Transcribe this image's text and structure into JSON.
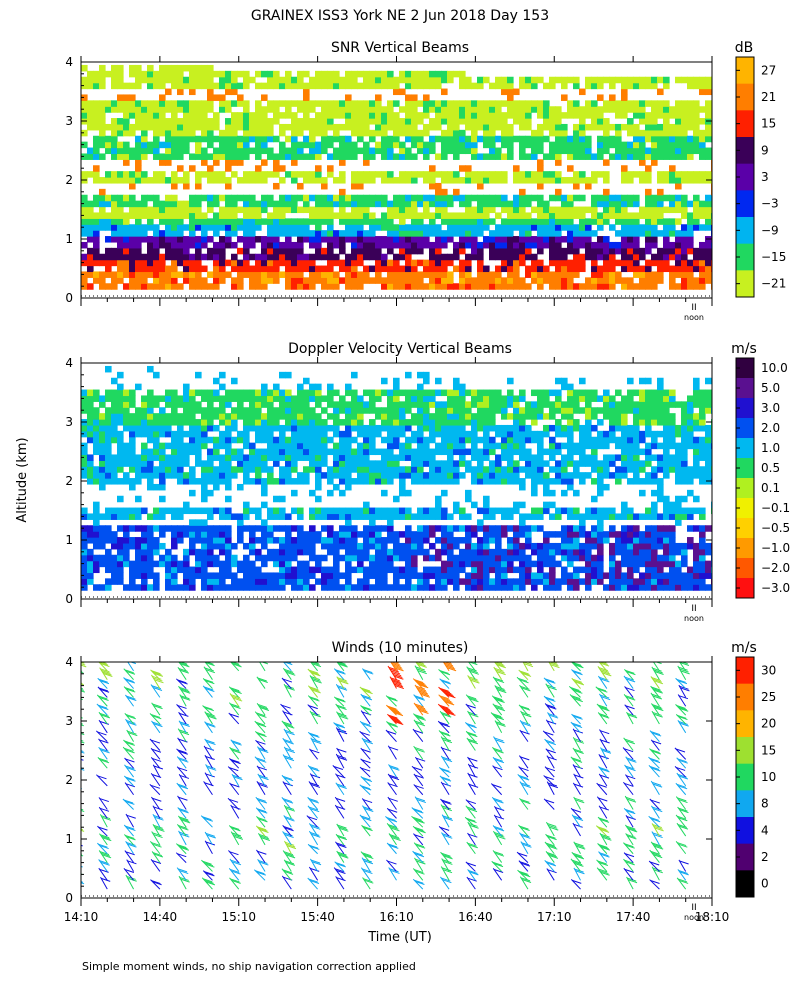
{
  "main_title": "GRAINEX ISS3 York NE   2 Jun 2018 Day 153",
  "footer_note": "Simple moment winds, no ship navigation correction applied",
  "shared_axes": {
    "ylabel": "Altitude (km)",
    "xlabel": "Time (UT)",
    "y_ticks": [
      0,
      1,
      2,
      3,
      4
    ],
    "x_range_minutes_utc": [
      850,
      1090
    ],
    "x_tick_labels": [
      "14:10",
      "14:40",
      "15:10",
      "15:40",
      "16:10",
      "16:40",
      "17:10",
      "17:40",
      "18:10"
    ],
    "noon_label": "noon",
    "noon_marker": "II"
  },
  "chart_data": [
    {
      "id": "snr",
      "type": "heatmap",
      "title": "SNR Vertical Beams",
      "unit": "dB",
      "ylim": [
        0,
        4
      ],
      "colorbar": {
        "labels": [
          "27",
          "21",
          "15",
          "9",
          "3",
          "−3",
          "−9",
          "−15",
          "−21"
        ],
        "colors": [
          "#ffb400",
          "#ff7e00",
          "#ff2000",
          "#3a0058",
          "#5a00a8",
          "#0028f0",
          "#00b4f0",
          "#20d860",
          "#c8f020"
        ],
        "background": "#b8f038"
      },
      "profile": [
        {
          "alt": 0.25,
          "level": 7
        },
        {
          "alt": 0.45,
          "level": 6
        },
        {
          "alt": 0.65,
          "level": 5
        },
        {
          "alt": 0.85,
          "level": 4
        },
        {
          "alt": 1.05,
          "level": 2
        },
        {
          "alt": 1.25,
          "level": 1
        },
        {
          "alt": 1.45,
          "level": 0
        },
        {
          "alt": 1.65,
          "level": 1
        },
        {
          "alt": 1.85,
          "level": -1
        },
        {
          "alt": 2.05,
          "level": 0
        },
        {
          "alt": 2.25,
          "level": -1
        },
        {
          "alt": 2.45,
          "level": 1
        },
        {
          "alt": 2.65,
          "level": 1
        },
        {
          "alt": 2.85,
          "level": 0
        },
        {
          "alt": 3.05,
          "level": 0
        },
        {
          "alt": 3.25,
          "level": 0
        },
        {
          "alt": 3.45,
          "level": -1
        },
        {
          "alt": 3.65,
          "level": 0
        },
        {
          "alt": 3.85,
          "level": 0
        }
      ]
    },
    {
      "id": "doppler",
      "type": "heatmap",
      "title": "Doppler Velocity Vertical Beams",
      "unit": "m/s",
      "ylim": [
        0,
        4
      ],
      "colorbar": {
        "labels": [
          "10.0",
          "5.0",
          "3.0",
          "2.0",
          "1.0",
          "0.5",
          "0.1",
          "−0.1",
          "−0.5",
          "−1.0",
          "−2.0",
          "−3.0"
        ],
        "colors": [
          "#300040",
          "#5a1090",
          "#2010d0",
          "#0050f0",
          "#00b8f0",
          "#20d860",
          "#b0f020",
          "#f0f000",
          "#ffd000",
          "#ff9a00",
          "#ff5800",
          "#ff1010"
        ],
        "background": "#f0f000"
      },
      "profile": [
        {
          "alt": 0.25,
          "level": 8
        },
        {
          "alt": 0.45,
          "level": 8
        },
        {
          "alt": 0.65,
          "level": 8
        },
        {
          "alt": 0.85,
          "level": 8
        },
        {
          "alt": 1.05,
          "level": 8
        },
        {
          "alt": 1.25,
          "level": -1
        },
        {
          "alt": 1.45,
          "level": 7
        },
        {
          "alt": 1.65,
          "level": -1
        },
        {
          "alt": 1.85,
          "level": -1
        },
        {
          "alt": 2.05,
          "level": 7
        },
        {
          "alt": 2.25,
          "level": 7
        },
        {
          "alt": 2.45,
          "level": 7
        },
        {
          "alt": 2.65,
          "level": 7
        },
        {
          "alt": 2.85,
          "level": 7
        },
        {
          "alt": 3.05,
          "level": 6
        },
        {
          "alt": 3.25,
          "level": 6
        },
        {
          "alt": 3.45,
          "level": 6
        },
        {
          "alt": 3.65,
          "level": -1
        }
      ]
    },
    {
      "id": "winds",
      "type": "scatter",
      "title": "Winds (10 minutes)",
      "unit": "m/s",
      "ylim": [
        0,
        4
      ],
      "colorbar": {
        "labels": [
          "30",
          "25",
          "20",
          "15",
          "10",
          "8",
          "4",
          "2",
          "0"
        ],
        "colors": [
          "#ff2000",
          "#ff7e00",
          "#ffb400",
          "#9ee030",
          "#20d860",
          "#10a8f0",
          "#1010e0",
          "#500070",
          "#000000"
        ]
      },
      "times_utc": [
        "14:10",
        "14:20",
        "14:30",
        "14:40",
        "14:50",
        "15:00",
        "15:10",
        "15:20",
        "15:30",
        "15:40",
        "15:50",
        "16:00",
        "16:10",
        "16:20",
        "16:30",
        "16:40",
        "16:50",
        "17:00",
        "17:10",
        "17:20",
        "17:30",
        "17:40",
        "17:50",
        "18:00"
      ],
      "altitudes_km": [
        0.15,
        0.3,
        0.45,
        0.6,
        0.75,
        0.9,
        1.05,
        1.2,
        1.35,
        1.5,
        1.75,
        1.9,
        2.05,
        2.2,
        2.35,
        2.5,
        2.65,
        2.8,
        2.95,
        3.1,
        3.25,
        3.4,
        3.55,
        3.7,
        3.85,
        4.0
      ],
      "speed_profile_ms": [
        {
          "alt": 0.3,
          "speed": 9
        },
        {
          "alt": 1.0,
          "speed": 11
        },
        {
          "alt": 1.8,
          "speed": 6
        },
        {
          "alt": 2.5,
          "speed": 8
        },
        {
          "alt": 3.2,
          "speed": 10
        },
        {
          "alt": 4.0,
          "speed": 14
        }
      ]
    }
  ]
}
